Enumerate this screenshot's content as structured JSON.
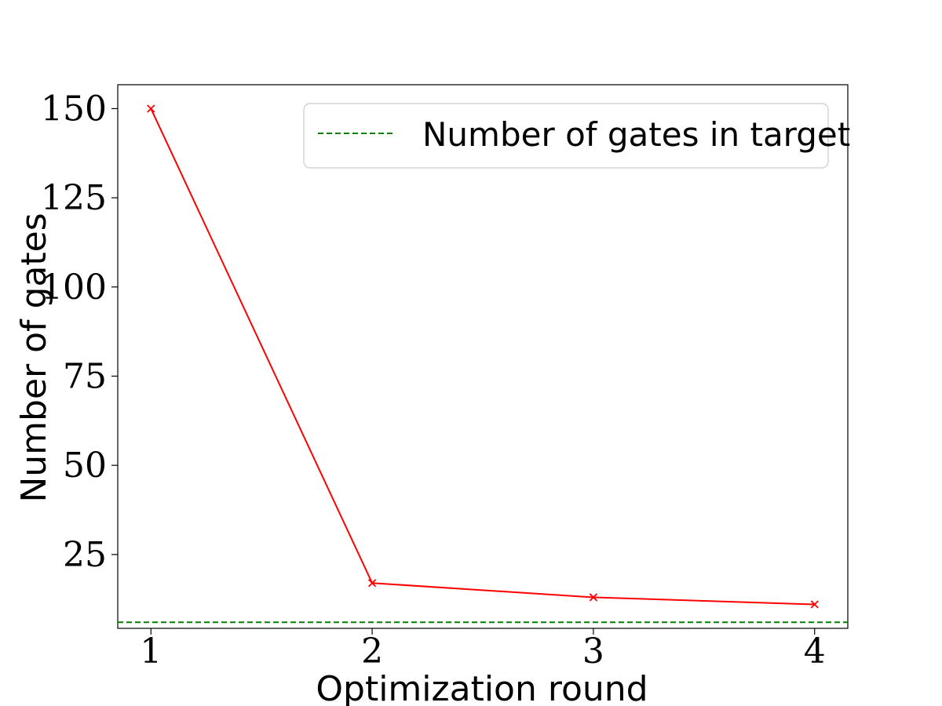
{
  "chart_data": {
    "type": "line",
    "x": [
      1,
      2,
      3,
      4
    ],
    "series": [
      {
        "values": [
          150,
          17,
          13,
          11
        ],
        "color": "#ff0000",
        "marker": "x"
      }
    ],
    "reference_line": {
      "name": "Number of gates in target",
      "value": 6,
      "color": "#008000",
      "style": "dashed"
    },
    "xlabel": "Optimization round",
    "ylabel": "Number of gates",
    "xlim": [
      0.85,
      4.15
    ],
    "ylim": [
      4.3,
      156.7
    ],
    "xticks": [
      1,
      2,
      3,
      4
    ],
    "yticks": [
      25,
      50,
      75,
      100,
      125,
      150
    ],
    "grid": false,
    "legend_position": "top-right"
  }
}
